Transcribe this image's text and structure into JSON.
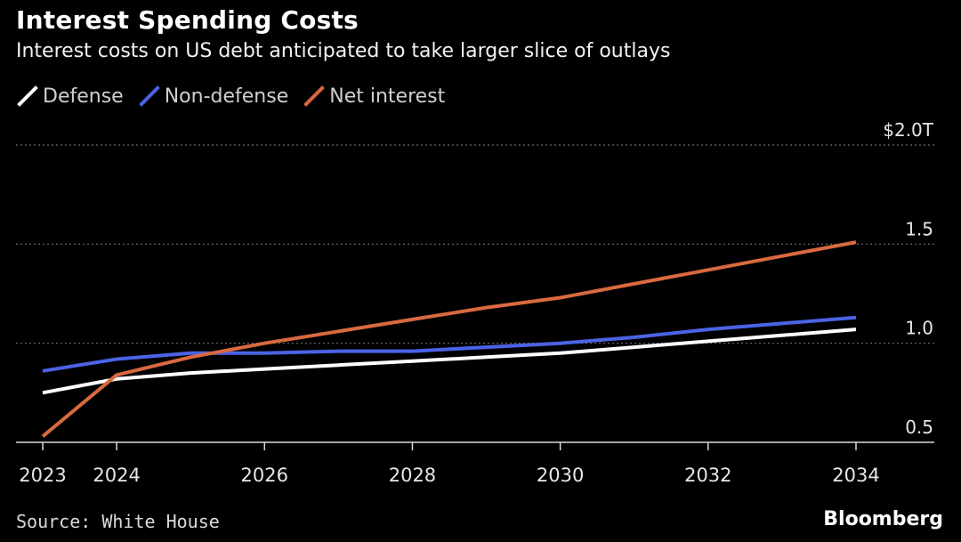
{
  "chart_data": {
    "type": "line",
    "title": "Interest Spending Costs",
    "subtitle": "Interest costs on US debt anticipated to take larger slice of outlays",
    "x": [
      2023,
      2024,
      2025,
      2026,
      2027,
      2028,
      2029,
      2030,
      2031,
      2032,
      2033,
      2034
    ],
    "x_tick_labels": [
      "2023",
      "2024",
      "2026",
      "2028",
      "2030",
      "2032",
      "2034"
    ],
    "x_ticks": [
      2023,
      2024,
      2026,
      2028,
      2030,
      2032,
      2034
    ],
    "y_tick_labels": [
      "$2.0T",
      "1.5",
      "1.0",
      "0.5"
    ],
    "y_ticks": [
      2.0,
      1.5,
      1.0,
      0.5
    ],
    "ylim": [
      0.5,
      2.0
    ],
    "xlim": [
      2023,
      2034
    ],
    "grid": true,
    "legend_position": "top-left",
    "series": [
      {
        "name": "Defense",
        "color": "#ffffff",
        "values": [
          0.75,
          0.82,
          0.85,
          0.87,
          0.89,
          0.91,
          0.93,
          0.95,
          0.98,
          1.01,
          1.04,
          1.07
        ]
      },
      {
        "name": "Non-defense",
        "color": "#4a63e6",
        "values": [
          0.86,
          0.92,
          0.95,
          0.95,
          0.96,
          0.96,
          0.98,
          1.0,
          1.03,
          1.07,
          1.1,
          1.13
        ]
      },
      {
        "name": "Net interest",
        "color": "#d9693f",
        "values": [
          0.53,
          0.84,
          0.93,
          1.0,
          1.06,
          1.12,
          1.18,
          1.23,
          1.3,
          1.37,
          1.44,
          1.51
        ]
      }
    ]
  },
  "footer": {
    "source": "Source: White House",
    "brand": "Bloomberg"
  }
}
